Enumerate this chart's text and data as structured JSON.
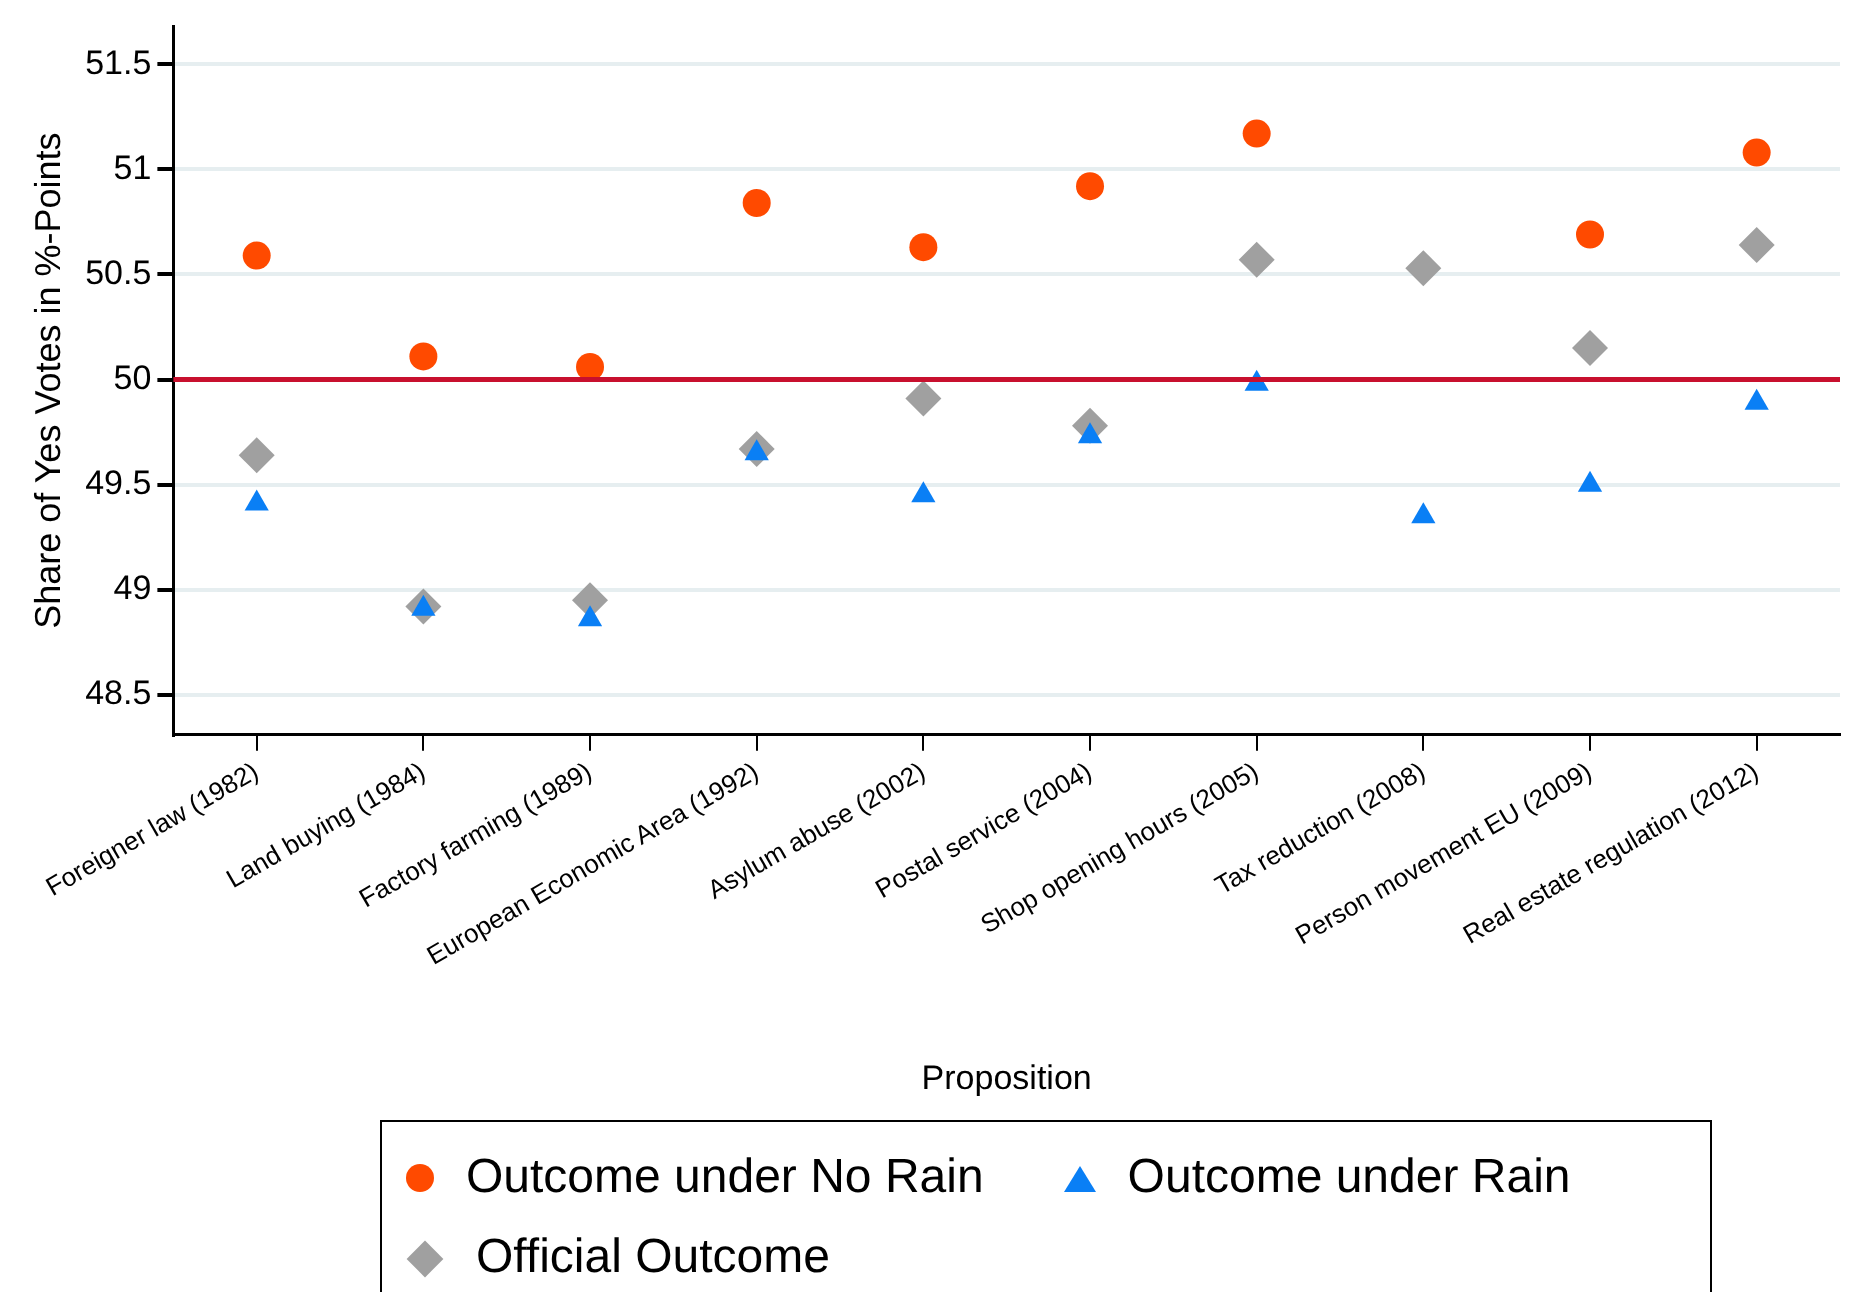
{
  "chart_data": {
    "type": "scatter",
    "xlabel": "Proposition",
    "ylabel": "Share of Yes Votes in %-Points",
    "categories": [
      "Foreigner law (1982)",
      "Land buying (1984)",
      "Factory farming (1989)",
      "European Economic Area (1992)",
      "Asylum abuse (2002)",
      "Postal service (2004)",
      "Shop opening hours (2005)",
      "Tax reduction (2008)",
      "Person movement EU (2009)",
      "Real estate regulation (2012)"
    ],
    "series": [
      {
        "name": "Outcome under No Rain",
        "color": "#ff4a00",
        "marker": "circle",
        "values": [
          50.59,
          50.11,
          50.06,
          50.84,
          50.63,
          50.92,
          51.17,
          null,
          50.69,
          51.08
        ]
      },
      {
        "name": "Official Outcome",
        "color": "#a0a0a0",
        "marker": "diamond",
        "values": [
          49.64,
          48.92,
          48.95,
          49.67,
          49.91,
          49.78,
          50.57,
          50.53,
          50.15,
          50.64
        ]
      },
      {
        "name": "Outcome under Rain",
        "color": "#0a7ff5",
        "marker": "triangle",
        "values": [
          49.41,
          48.91,
          48.86,
          49.65,
          49.45,
          49.73,
          49.98,
          49.35,
          49.5,
          49.89
        ]
      }
    ],
    "ylim": [
      48.31,
      51.68
    ],
    "yticks": [
      48.5,
      49,
      49.5,
      50,
      50.5,
      51,
      51.5
    ],
    "ref_lines": [
      {
        "axis": "y",
        "value": 50,
        "color": "#c8102e"
      }
    ],
    "grid": "y",
    "legend": "bottom"
  }
}
